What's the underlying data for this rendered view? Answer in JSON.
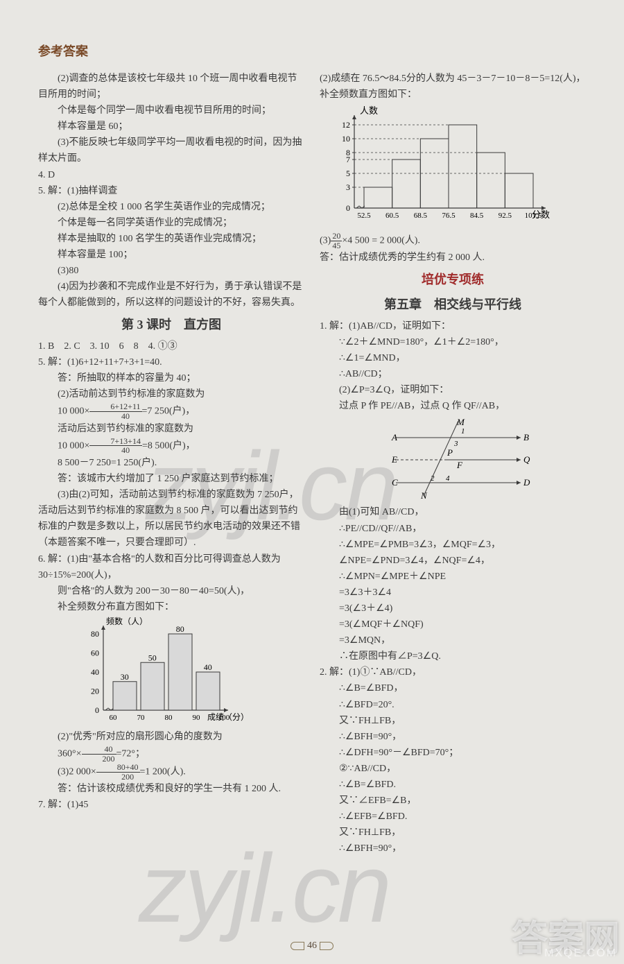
{
  "header": "参考答案",
  "pagenum": "46",
  "left": {
    "p1": "(2)调查的总体是该校七年级共 10 个班一周中收看电视节目所用的时间；",
    "p2": "个体是每个同学一周中收看电视节目所用的时间；",
    "p3": "样本容量是 60；",
    "p4": "(3)不能反映七年级同学平均一周收看电视的时间，因为抽样太片面。",
    "q4": "4. D",
    "q5a": "5. 解：(1)抽样调查",
    "q5b": "(2)总体是全校 1 000 名学生英语作业的完成情况；",
    "q5c": "个体是每一名同学英语作业的完成情况；",
    "q5d": "样本是抽取的 100 名学生的英语作业完成情况；",
    "q5e": "样本容量是 100；",
    "q5f": "(3)80",
    "q5g": "(4)因为抄袭和不完成作业是不好行为，勇于承认错误不是每个人都能做到的，所以这样的问题设计的不好，容易失真。",
    "sec3": "第 3 课时　直方图",
    "row1": "1. B　2. C　3. 10　6　8　4. ①③",
    "q5_2a": "5. 解：(1)6+12+11+7+3+1=40.",
    "q5_2b": "答：所抽取的样本的容量为 40；",
    "q5_2c": "(2)活动前达到节约标准的家庭数为",
    "frac1_pre": "10 000×",
    "frac1_num": "6+12+11",
    "frac1_den": "40",
    "frac1_suf": "=7 250(户)，",
    "q5_2d": "活动后达到节约标准的家庭数为",
    "frac2_pre": "10 000×",
    "frac2_num": "7+13+14",
    "frac2_den": "40",
    "frac2_suf": "=8 500(户)，",
    "q5_2e": "8 500－7 250=1 250(户).",
    "q5_2f": "答：该城市大约增加了 1 250 户家庭达到节约标准；",
    "q5_2g": "(3)由(2)可知，活动前达到节约标准的家庭数为 7 250户，活动后达到节约标准的家庭数为 8 500 户，可以看出达到节约标准的户数是多数以上，所以居民节约水电活动的效果还不错（本题答案不唯一，只要合理即可）.",
    "q6a": "6. 解：(1)由\"基本合格\"的人数和百分比可得调查总人数为 30÷15%=200(人)，",
    "q6b": "则\"合格\"的人数为 200－30－80－40=50(人)，",
    "q6c": "补全频数分布直方图如下：",
    "chart1": {
      "ylabel": "频数（人）",
      "xlabel": "成绩（分）",
      "yticks": [
        0,
        20,
        40,
        60,
        80
      ],
      "xticks": [
        "60",
        "70",
        "80",
        "90",
        "100"
      ],
      "bars": [
        30,
        50,
        80,
        40
      ],
      "bar_labels": [
        "30",
        "50",
        "80",
        "40"
      ],
      "axis_color": "#3a3a3a",
      "bar_fill": "#d9d9d9",
      "bar_stroke": "#3a3a3a"
    },
    "q6d": "(2)\"优秀\"所对应的扇形圆心角的度数为",
    "frac3_pre": "360°×",
    "frac3_num": "40",
    "frac3_den": "200",
    "frac3_suf": "=72°；",
    "frac4_pre": "(3)2 000×",
    "frac4_num": "80+40",
    "frac4_den": "200",
    "frac4_suf": "=1 200(人).",
    "q6e": "答：估计该校成绩优秀和良好的学生一共有 1 200 人.",
    "q7": "7. 解：(1)45"
  },
  "right": {
    "p1": "(2)成绩在 76.5～84.5分的人数为 45－3－7－10－8－5=12(人)，",
    "p2": "补全频数直方图如下：",
    "chart2": {
      "ylabel": "人数",
      "xlabel": "分数",
      "yticks": [
        0,
        3,
        5,
        7,
        8,
        10,
        12
      ],
      "xticks": [
        "52.5",
        "60.5",
        "68.5",
        "76.5",
        "84.5",
        "92.5",
        "101.5"
      ],
      "bars": [
        3,
        7,
        10,
        12,
        8,
        5
      ],
      "axis_color": "#3a3a3a",
      "bar_fill": "none",
      "bar_stroke": "#3a3a3a"
    },
    "frac5_pre": "(3)",
    "frac5_num": "20",
    "frac5_den": "45",
    "frac5_suf": "×4 500 = 2 000(人).",
    "p3": "答：估计成绩优秀的学生约有 2 000 人.",
    "secA": "培优专项练",
    "secB": "第五章　相交线与平行线",
    "q1a": "1. 解：(1)AB//CD，证明如下：",
    "q1b": "∵∠2＋∠MND=180°，∠1＋∠2=180°，",
    "q1c": "∴∠1=∠MND，",
    "q1d": "∴AB//CD；",
    "q1e": "(2)∠P=3∠Q，证明如下：",
    "q1f": "过点 P 作 PE//AB，过点 Q 作 QF//AB，",
    "geom": {
      "labels": {
        "A": "A",
        "B": "B",
        "C": "C",
        "D": "D",
        "E": "E",
        "M": "M",
        "N": "N",
        "P": "P",
        "Q": "Q",
        "F": "F"
      },
      "nums": [
        "1",
        "2",
        "3",
        "4"
      ]
    },
    "q1g": "由(1)可知 AB//CD，",
    "q1h": "∴PE//CD//QF//AB，",
    "q1i": "∴∠MPE=∠PMB=3∠3，∠MQF=∠3，",
    "q1j": "∠NPE=∠PND=3∠4，∠NQF=∠4，",
    "q1k": "∴∠MPN=∠MPE＋∠NPE",
    "q1l": "=3∠3＋3∠4",
    "q1m": "=3(∠3＋∠4)",
    "q1n": "=3(∠MQF＋∠NQF)",
    "q1o": "=3∠MQN，",
    "q1p": "∴在原图中有∠P=3∠Q.",
    "q2a": "2. 解：(1)①∵AB//CD，",
    "q2b": "∴∠B=∠BFD，",
    "q2c": "∴∠BFD=20°.",
    "q2d": "又∵FH⊥FB，",
    "q2e": "∴∠BFH=90°，",
    "q2f": "∴∠DFH=90°－∠BFD=70°；",
    "q2g": "②∵AB//CD，",
    "q2h": "∴∠B=∠BFD.",
    "q2i": "又∵∠EFB=∠B，",
    "q2j": "∴∠EFB=∠BFD.",
    "q2k": "又∵FH⊥FB，",
    "q2l": "∴∠BFH=90°，"
  }
}
